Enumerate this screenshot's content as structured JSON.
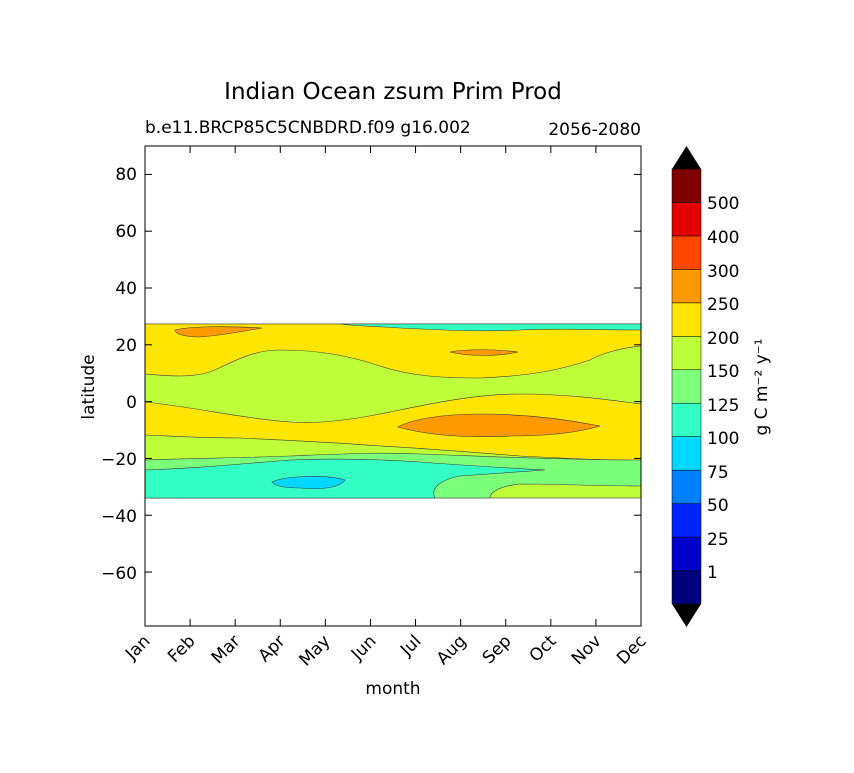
{
  "chart_data": {
    "type": "contour",
    "title": "Indian Ocean zsum Prim Prod",
    "subtitle_left": "b.e11.BRCP85C5CNBDRD.f09 g16.002",
    "subtitle_right": "2056-2080",
    "xlabel": "month",
    "ylabel": "latitude",
    "x_ticks": [
      "Jan",
      "Feb",
      "Mar",
      "Apr",
      "May",
      "Jun",
      "Jul",
      "Aug",
      "Sep",
      "Oct",
      "Nov",
      "Dec"
    ],
    "x_range": [
      0,
      11
    ],
    "y_ticks": [
      "80",
      "60",
      "40",
      "20",
      "0",
      "−20",
      "−40",
      "−60"
    ],
    "y_tick_values": [
      80,
      60,
      40,
      20,
      0,
      -20,
      -40,
      -60
    ],
    "ylim": [
      -79,
      90
    ],
    "data_lat_range": [
      -34,
      27
    ],
    "colorbar": {
      "label": "g C m⁻² y⁻¹",
      "levels": [
        "1",
        "25",
        "50",
        "75",
        "100",
        "125",
        "150",
        "200",
        "250",
        "300",
        "400",
        "500"
      ],
      "colors": [
        "#00007f",
        "#0000cd",
        "#0022ff",
        "#0080ff",
        "#00d8ff",
        "#33ffc4",
        "#7cff7a",
        "#beff39",
        "#ffe500",
        "#ff9900",
        "#ff4600",
        "#e40000",
        "#7f0000"
      ],
      "extend": "both",
      "under_color": "#000000",
      "over_color": "#000000"
    },
    "regions": [
      {
        "month": "Jan-Dec",
        "lat": [
          -34,
          27
        ],
        "band": "150-200"
      },
      {
        "month": "Jan-Dec",
        "lat": [
          -30,
          -20
        ],
        "band": "125-150"
      },
      {
        "month": "Feb-Dec",
        "lat": [
          -28,
          -23
        ],
        "band": "100-125"
      },
      {
        "month": "Apr-May",
        "lat": [
          -32,
          -26
        ],
        "band": "75-100"
      },
      {
        "month": "Jan-Dec",
        "lat": [
          -20,
          0
        ],
        "band": "200-250"
      },
      {
        "month": "Jan-Dec",
        "lat": [
          10,
          27
        ],
        "band": "200-250"
      },
      {
        "month": "Aug-Oct",
        "lat": [
          -12,
          -5
        ],
        "band": "250-300"
      },
      {
        "month": "Jan-Mar",
        "lat": [
          23,
          26
        ],
        "band": "250-300"
      },
      {
        "month": "Aug",
        "lat": [
          16,
          18
        ],
        "band": "250-300"
      }
    ]
  }
}
